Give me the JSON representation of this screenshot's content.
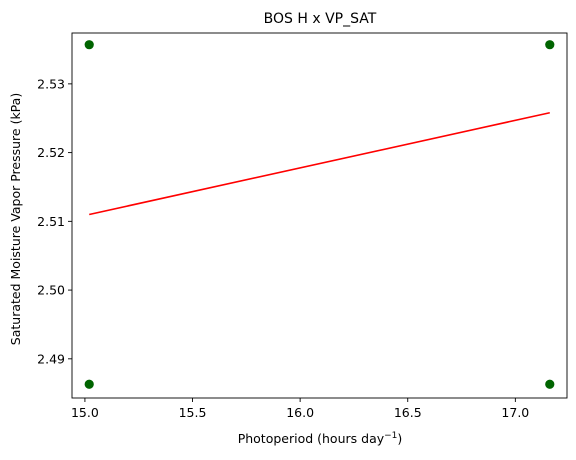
{
  "chart_data": {
    "type": "scatter",
    "title": "BOS H x VP_SAT",
    "xlabel": "Photoperiod (hours day",
    "xlabel_superscript": "−1",
    "xlabel_suffix": ")",
    "ylabel": "Saturated Moisture Vapor Pressure (kPa)",
    "xlim": [
      14.94,
      17.24
    ],
    "ylim": [
      2.4843,
      2.5374
    ],
    "x_ticks": [
      15.0,
      15.5,
      16.0,
      16.5,
      17.0
    ],
    "x_tick_labels": [
      "15.0",
      "15.5",
      "16.0",
      "16.5",
      "17.0"
    ],
    "y_ticks": [
      2.49,
      2.5,
      2.51,
      2.52,
      2.53
    ],
    "y_tick_labels": [
      "2.49",
      "2.50",
      "2.51",
      "2.52",
      "2.53"
    ],
    "grid": false,
    "series": [
      {
        "kind": "scatter",
        "color": "#006400",
        "points": [
          {
            "x": 15.02,
            "y": 2.5357
          },
          {
            "x": 15.02,
            "y": 2.4863
          },
          {
            "x": 17.16,
            "y": 2.5357
          },
          {
            "x": 17.16,
            "y": 2.4863
          }
        ]
      },
      {
        "kind": "line",
        "color": "#ff0000",
        "points": [
          {
            "x": 15.02,
            "y": 2.511
          },
          {
            "x": 17.16,
            "y": 2.5258
          }
        ]
      }
    ]
  }
}
